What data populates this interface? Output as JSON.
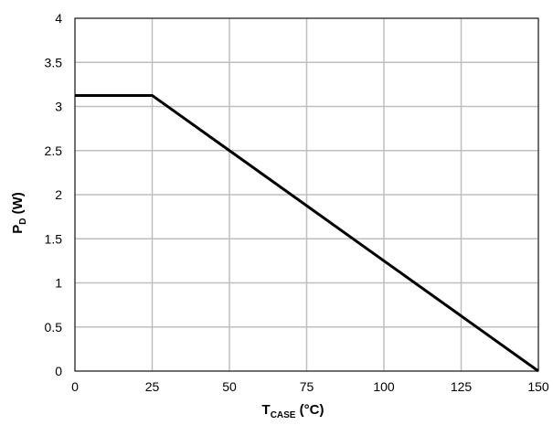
{
  "chart_data": {
    "type": "line",
    "xlabel": {
      "main": "T",
      "sub": "CASE",
      "rest": " (°C)"
    },
    "ylabel": {
      "main": "P",
      "sub": "D",
      "rest": " (W)"
    },
    "xlim": [
      0,
      150
    ],
    "ylim": [
      0,
      4
    ],
    "x_ticks": [
      0,
      25,
      50,
      75,
      100,
      125,
      150
    ],
    "y_ticks": [
      0,
      0.5,
      1,
      1.5,
      2,
      2.5,
      3,
      3.5,
      4
    ],
    "grid": true,
    "series": [
      {
        "points": [
          {
            "x": 0,
            "y": 3.125
          },
          {
            "x": 25,
            "y": 3.125
          },
          {
            "x": 150,
            "y": 0
          }
        ],
        "color": "#000000"
      }
    ]
  }
}
